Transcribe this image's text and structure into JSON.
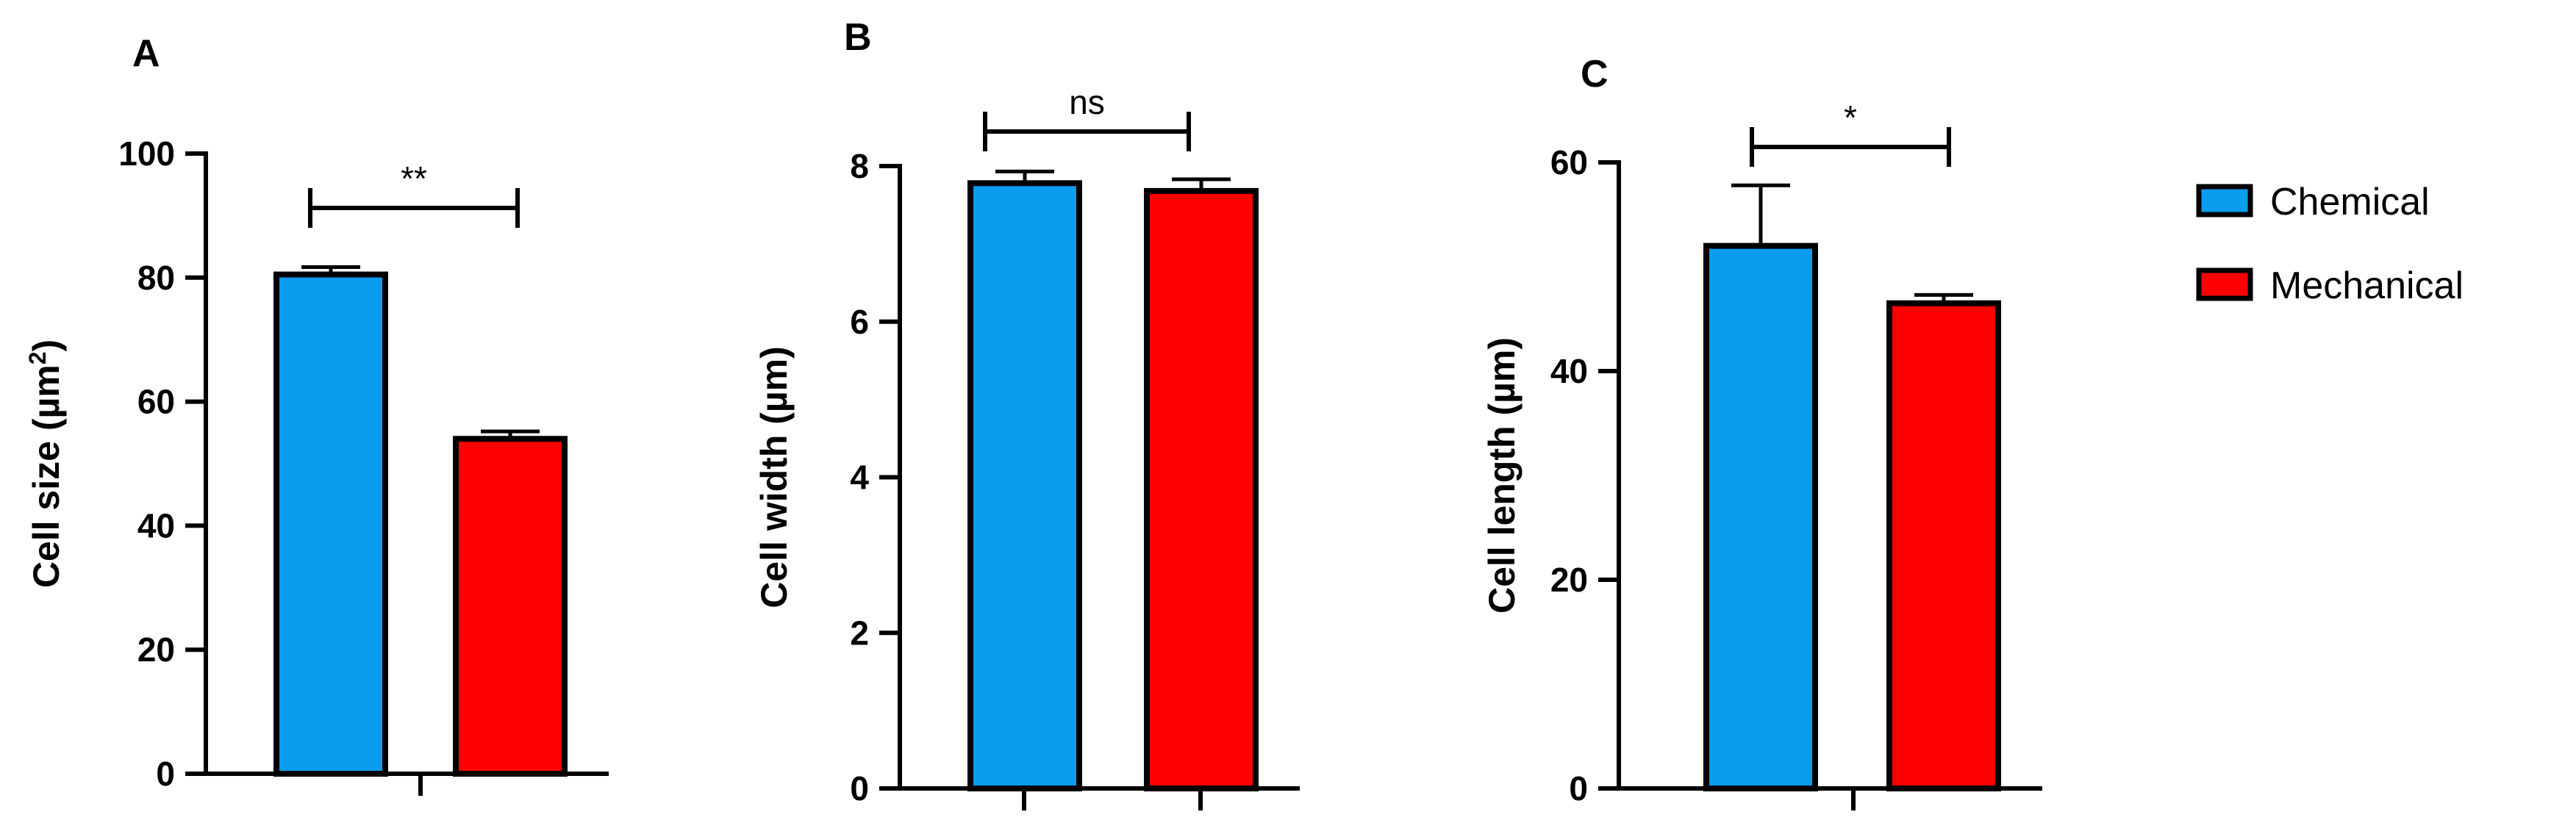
{
  "legend": {
    "position": "right",
    "items": [
      {
        "label": "Chemical",
        "color": "#0b9cf0"
      },
      {
        "label": "Mechanical",
        "color": "#ff0000"
      }
    ]
  },
  "chart_data": [
    {
      "panel": "A",
      "type": "bar",
      "ylabel": "Cell size (µm",
      "ylabel_sup": "2",
      "ylabel_end": ")",
      "ylim": [
        0,
        100
      ],
      "yticks": [
        0,
        20,
        40,
        60,
        80,
        100
      ],
      "series": [
        {
          "name": "Chemical",
          "value": 80.5,
          "error": 1.2,
          "color": "#0b9cf0"
        },
        {
          "name": "Mechanical",
          "value": 54,
          "error": 1.2,
          "color": "#ff0000"
        }
      ],
      "significance": "**"
    },
    {
      "panel": "B",
      "type": "bar",
      "ylabel": "Cell width (µm)",
      "ylim": [
        0,
        8
      ],
      "yticks": [
        0,
        2,
        4,
        6,
        8
      ],
      "series": [
        {
          "name": "Chemical",
          "value": 7.78,
          "error": 0.15,
          "color": "#0b9cf0"
        },
        {
          "name": "Mechanical",
          "value": 7.68,
          "error": 0.15,
          "color": "#ff0000"
        }
      ],
      "significance": "ns"
    },
    {
      "panel": "C",
      "type": "bar",
      "ylabel": "Cell length (µm)",
      "ylim": [
        0,
        60
      ],
      "yticks": [
        0,
        20,
        40,
        60
      ],
      "series": [
        {
          "name": "Chemical",
          "value": 52,
          "error": 5.8,
          "color": "#0b9cf0"
        },
        {
          "name": "Mechanical",
          "value": 46.5,
          "error": 0.8,
          "color": "#ff0000"
        }
      ],
      "significance": "*"
    }
  ]
}
